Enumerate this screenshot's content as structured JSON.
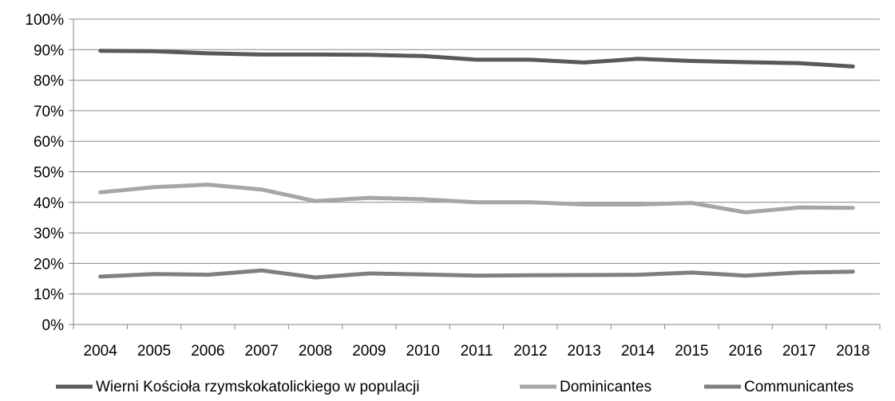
{
  "chart_data": {
    "type": "line",
    "categories": [
      "2004",
      "2005",
      "2006",
      "2007",
      "2008",
      "2009",
      "2010",
      "2011",
      "2012",
      "2013",
      "2014",
      "2015",
      "2016",
      "2017",
      "2018"
    ],
    "y_tick_labels": [
      "0%",
      "10%",
      "20%",
      "30%",
      "40%",
      "50%",
      "60%",
      "70%",
      "80%",
      "90%",
      "100%"
    ],
    "ylim": [
      0,
      100
    ],
    "y_unit": "%",
    "grid": "horizontal",
    "legend_position": "bottom",
    "series": [
      {
        "name": "Wierni Kościoła rzymskokatolickiego w populacji",
        "color": "#595959",
        "values": [
          89.6,
          89.5,
          88.8,
          88.4,
          88.4,
          88.3,
          87.9,
          86.7,
          86.7,
          85.8,
          87.0,
          86.3,
          85.9,
          85.6,
          84.5
        ]
      },
      {
        "name": "Dominicantes",
        "color": "#a6a6a6",
        "values": [
          43.3,
          45.0,
          45.8,
          44.2,
          40.4,
          41.5,
          41.0,
          40.0,
          40.0,
          39.3,
          39.3,
          39.8,
          36.7,
          38.3,
          38.2
        ]
      },
      {
        "name": "Communicantes",
        "color": "#7f7f7f",
        "values": [
          15.7,
          16.5,
          16.3,
          17.7,
          15.4,
          16.7,
          16.4,
          16.0,
          16.1,
          16.2,
          16.3,
          17.0,
          16.0,
          17.0,
          17.3
        ]
      }
    ]
  }
}
